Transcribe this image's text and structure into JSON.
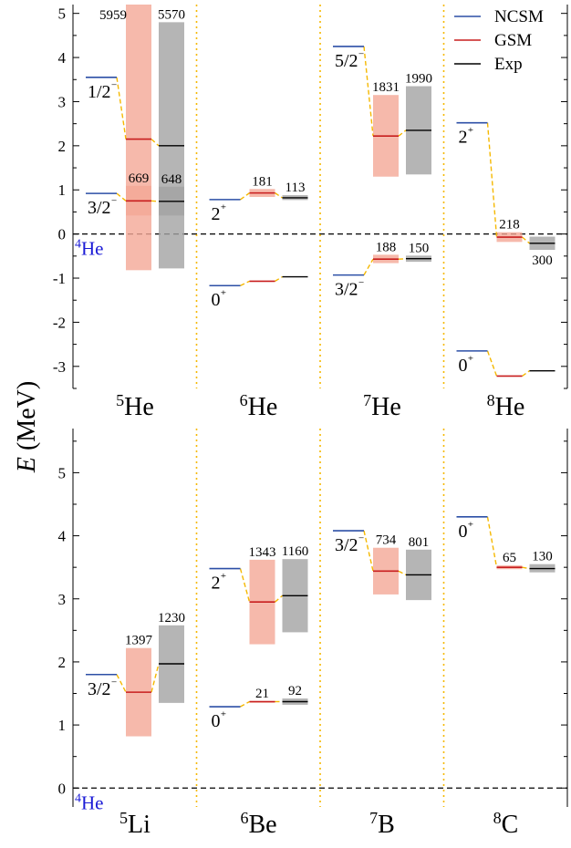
{
  "chart_data": [
    {
      "type": "level-scheme",
      "ylim": [
        -3.5,
        5.2
      ],
      "yticks": [
        -3,
        -2,
        -1,
        0,
        1,
        2,
        3,
        4,
        5
      ],
      "reference": "4He",
      "legend": [
        {
          "name": "NCSM",
          "color": "#2c4fa6"
        },
        {
          "name": "GSM",
          "color": "#c81e1e"
        },
        {
          "name": "Exp",
          "color": "#000000"
        }
      ],
      "nuclei": [
        {
          "label": "5He",
          "mass": "5",
          "sym": "He",
          "levels": [
            {
              "jpi": "1/2⁻",
              "ncsm": 3.55,
              "gsm": 2.15,
              "gsm_width": "5959",
              "gsm_band": [
                -0.82,
                5.2
              ],
              "exp": 2.0,
              "exp_width": "5570",
              "exp_band": [
                -0.78,
                4.8
              ]
            },
            {
              "jpi": "3/2⁻",
              "ncsm": 0.92,
              "gsm": 0.75,
              "gsm_width": "669",
              "gsm_band": [
                0.42,
                1.09
              ],
              "exp": 0.74,
              "exp_width": "648",
              "exp_band": [
                0.42,
                1.07
              ]
            }
          ]
        },
        {
          "label": "6He",
          "mass": "6",
          "sym": "He",
          "levels": [
            {
              "jpi": "2⁺",
              "ncsm": 0.78,
              "gsm": 0.93,
              "gsm_width": "181",
              "gsm_band": [
                0.84,
                1.02
              ],
              "exp": 0.82,
              "exp_width": "113",
              "exp_band": [
                0.77,
                0.88
              ]
            },
            {
              "jpi": "0⁺",
              "ncsm": -1.17,
              "gsm": -1.07,
              "exp": -0.97
            }
          ]
        },
        {
          "label": "7He",
          "mass": "7",
          "sym": "He",
          "levels": [
            {
              "jpi": "5/2⁻",
              "ncsm": 4.25,
              "gsm": 2.22,
              "gsm_width": "1831",
              "gsm_band": [
                1.3,
                3.15
              ],
              "exp": 2.35,
              "exp_width": "1990",
              "exp_band": [
                1.35,
                3.35
              ]
            },
            {
              "jpi": "3/2⁻",
              "ncsm": -0.93,
              "gsm": -0.57,
              "gsm_width": "188",
              "gsm_band": [
                -0.66,
                -0.47
              ],
              "exp": -0.56,
              "exp_width": "150",
              "exp_band": [
                -0.63,
                -0.49
              ]
            }
          ]
        },
        {
          "label": "8He",
          "mass": "8",
          "sym": "He",
          "levels": [
            {
              "jpi": "2⁺",
              "ncsm": 2.52,
              "gsm": -0.07,
              "gsm_width": "218",
              "gsm_band": [
                -0.18,
                0.04
              ],
              "exp": -0.21,
              "exp_width": "300",
              "exp_band": [
                -0.36,
                -0.06
              ]
            },
            {
              "jpi": "0⁺",
              "ncsm": -2.65,
              "gsm": -3.22,
              "exp": -3.1
            }
          ]
        }
      ]
    },
    {
      "type": "level-scheme",
      "ylim": [
        -0.3,
        5.7
      ],
      "yticks": [
        0,
        1,
        2,
        3,
        4,
        5
      ],
      "reference": "4He",
      "nuclei": [
        {
          "label": "5Li",
          "mass": "5",
          "sym": "Li",
          "levels": [
            {
              "jpi": "3/2⁻",
              "ncsm": 1.8,
              "gsm": 1.52,
              "gsm_width": "1397",
              "gsm_band": [
                0.82,
                2.22
              ],
              "exp": 1.97,
              "exp_width": "1230",
              "exp_band": [
                1.35,
                2.58
              ]
            }
          ]
        },
        {
          "label": "6Be",
          "mass": "6",
          "sym": "Be",
          "levels": [
            {
              "jpi": "2⁺",
              "ncsm": 3.48,
              "gsm": 2.95,
              "gsm_width": "1343",
              "gsm_band": [
                2.28,
                3.62
              ],
              "exp": 3.05,
              "exp_width": "1160",
              "exp_band": [
                2.47,
                3.63
              ]
            },
            {
              "jpi": "0⁺",
              "ncsm": 1.29,
              "gsm": 1.37,
              "gsm_width": "21",
              "gsm_band": [
                1.36,
                1.38
              ],
              "exp": 1.37,
              "exp_width": "92",
              "exp_band": [
                1.32,
                1.42
              ]
            }
          ]
        },
        {
          "label": "7B",
          "mass": "7",
          "sym": "B",
          "levels": [
            {
              "jpi": "3/2⁻",
              "ncsm": 4.08,
              "gsm": 3.44,
              "gsm_width": "734",
              "gsm_band": [
                3.07,
                3.81
              ],
              "exp": 3.38,
              "exp_width": "801",
              "exp_band": [
                2.98,
                3.78
              ]
            }
          ]
        },
        {
          "label": "8C",
          "mass": "8",
          "sym": "C",
          "levels": [
            {
              "jpi": "0⁺",
              "ncsm": 4.3,
              "gsm": 3.5,
              "gsm_width": "65",
              "gsm_band": [
                3.47,
                3.53
              ],
              "exp": 3.48,
              "exp_width": "130",
              "exp_band": [
                3.42,
                3.55
              ]
            }
          ]
        }
      ]
    }
  ],
  "ylabel_symbol": "E",
  "ylabel_unit": "(MeV)",
  "colors": {
    "ncsm": "#2c4fa6",
    "gsm": "#c81e1e",
    "exp": "#000000",
    "gsm_band": "#f4a896",
    "exp_band": "#a3a3a3",
    "connector": "#f5b800",
    "divider": "#f5b800",
    "he4_label": "#1a1ad6"
  }
}
